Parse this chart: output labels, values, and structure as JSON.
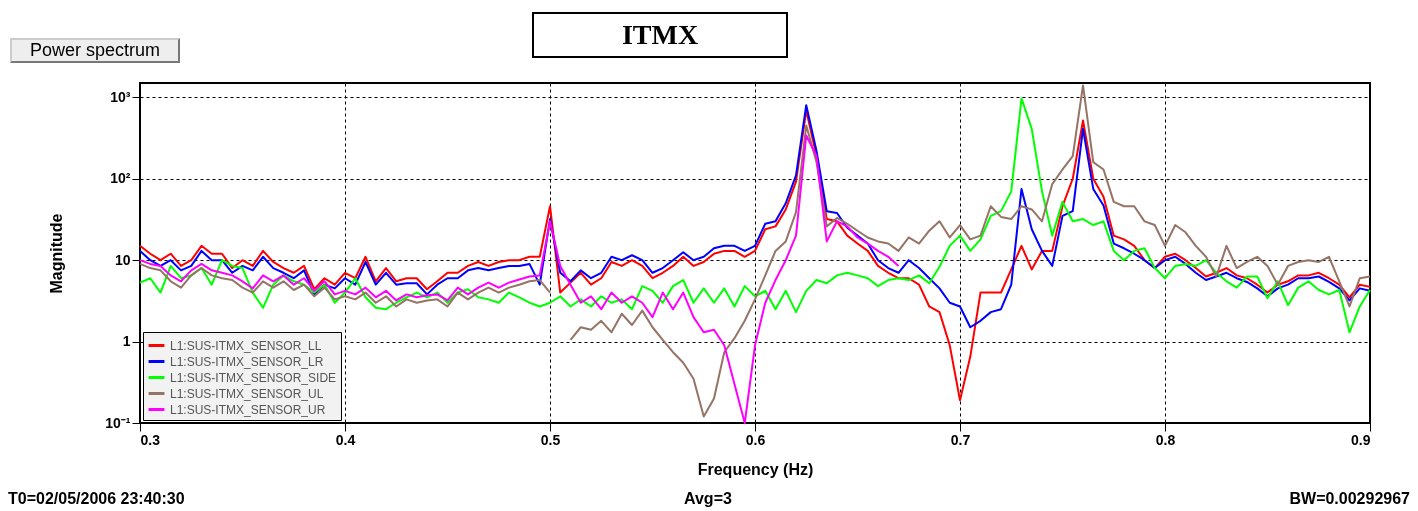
{
  "chart_data": {
    "type": "line",
    "title": "ITMX",
    "xlabel": "Frequency (Hz)",
    "ylabel": "Magnitude",
    "annotations": [
      "Power spectrum",
      "T0=02/05/2006 23:40:30",
      "Avg=3",
      "BW=0.00292967"
    ],
    "x": [
      0.3,
      0.305,
      0.31,
      0.315,
      0.32,
      0.325,
      0.33,
      0.335,
      0.34,
      0.345,
      0.35,
      0.355,
      0.36,
      0.365,
      0.37,
      0.375,
      0.38,
      0.385,
      0.39,
      0.395,
      0.4,
      0.405,
      0.41,
      0.415,
      0.42,
      0.425,
      0.43,
      0.435,
      0.44,
      0.445,
      0.45,
      0.455,
      0.46,
      0.465,
      0.47,
      0.475,
      0.48,
      0.485,
      0.49,
      0.495,
      0.5,
      0.505,
      0.51,
      0.515,
      0.52,
      0.525,
      0.53,
      0.535,
      0.54,
      0.545,
      0.55,
      0.555,
      0.56,
      0.565,
      0.57,
      0.575,
      0.58,
      0.585,
      0.59,
      0.595,
      0.6,
      0.605,
      0.61,
      0.615,
      0.62,
      0.625,
      0.63,
      0.635,
      0.64,
      0.645,
      0.65,
      0.655,
      0.66,
      0.665,
      0.67,
      0.675,
      0.68,
      0.685,
      0.69,
      0.695,
      0.7,
      0.705,
      0.71,
      0.715,
      0.72,
      0.725,
      0.73,
      0.735,
      0.74,
      0.745,
      0.75,
      0.755,
      0.76,
      0.765,
      0.77,
      0.775,
      0.78,
      0.785,
      0.79,
      0.795,
      0.8,
      0.805,
      0.81,
      0.815,
      0.82,
      0.825,
      0.83,
      0.835,
      0.84,
      0.845,
      0.85,
      0.855,
      0.86,
      0.865,
      0.87,
      0.875,
      0.88,
      0.885,
      0.89,
      0.895,
      0.9
    ],
    "series": [
      {
        "name": "L1:SUS-ITMX_SENSOR_LL",
        "color": "#ff0000",
        "values": [
          15,
          12,
          10,
          12,
          8.5,
          10,
          15,
          12,
          12,
          8,
          10,
          8.5,
          13,
          9.5,
          8,
          7,
          8.5,
          4.4,
          6,
          5,
          7,
          6,
          11,
          5.5,
          8,
          5.5,
          6,
          6,
          4.4,
          5.5,
          7,
          7,
          8.5,
          9.5,
          8.5,
          9.5,
          10,
          10,
          11,
          11,
          46,
          4,
          5.3,
          7,
          5,
          6,
          9.5,
          8.5,
          10,
          8.5,
          6,
          7,
          8.5,
          11,
          8.5,
          9.5,
          12,
          13,
          13,
          11,
          13,
          24,
          26,
          42,
          92,
          690,
          190,
          32,
          30,
          20,
          16,
          13,
          8.5,
          7,
          6,
          6,
          5,
          2.7,
          2.3,
          0.9,
          0.19,
          0.65,
          4,
          4,
          4,
          7.7,
          15,
          7.7,
          13,
          13,
          46,
          100,
          520,
          100,
          60,
          20,
          18,
          15,
          10,
          8,
          11,
          12,
          10,
          8,
          6.3,
          7,
          8,
          6.5,
          6,
          5,
          4,
          5,
          5.5,
          6.5,
          6.5,
          7,
          6,
          5,
          3.5,
          5,
          4.7
        ]
      },
      {
        "name": "L1:SUS-ITMX_SENSOR_LR",
        "color": "#0000ff",
        "values": [
          13,
          10,
          8.5,
          10,
          7.5,
          8.5,
          13,
          10,
          10,
          7,
          8.5,
          7.5,
          11,
          8,
          7,
          6,
          7.5,
          3.8,
          5,
          4.5,
          6,
          5,
          9.5,
          5,
          7,
          5,
          5.2,
          5.2,
          3.8,
          5,
          6,
          6,
          7.5,
          8,
          7.5,
          8,
          8.5,
          8.5,
          9,
          5,
          32,
          7,
          5.5,
          7.5,
          6,
          7,
          11,
          10,
          11.5,
          10,
          7,
          8,
          10,
          12.5,
          10,
          11,
          14,
          15,
          15,
          13,
          15,
          28,
          30,
          50,
          110,
          800,
          220,
          40,
          38,
          25,
          20,
          16,
          10,
          8,
          7,
          10,
          8,
          6,
          4.5,
          3,
          2.7,
          1.5,
          1.8,
          2.3,
          2.5,
          5,
          75,
          24,
          13,
          8.5,
          35,
          40,
          410,
          75,
          47,
          16,
          14,
          12,
          10,
          8,
          10,
          11,
          9,
          7,
          5.7,
          6.3,
          7,
          6,
          5.4,
          4.5,
          3.6,
          4.5,
          5,
          6,
          6,
          6.3,
          5.4,
          4.5,
          3.2,
          4.5,
          4.2
        ]
      },
      {
        "name": "L1:SUS-ITMX_SENSOR_SIDE",
        "color": "#00ff00",
        "values": [
          5.3,
          6,
          4,
          8.5,
          6,
          6.5,
          8,
          5,
          10,
          8.5,
          8,
          4,
          2.6,
          5,
          6.5,
          5.5,
          5,
          4,
          5,
          3,
          4,
          6,
          3.5,
          2.6,
          2.5,
          3,
          3.5,
          4,
          3.5,
          4,
          3,
          4,
          4.4,
          3.5,
          3.3,
          3,
          4,
          3.5,
          3,
          2.7,
          3,
          3.6,
          2.7,
          3.3,
          2.7,
          3.6,
          3,
          3.3,
          2.5,
          4.8,
          4.2,
          3,
          4.8,
          5.7,
          3,
          4.5,
          3,
          4.5,
          2.7,
          4.8,
          3.6,
          4.2,
          2.5,
          4.2,
          2.3,
          4.2,
          5.7,
          5.2,
          6.5,
          7,
          6.5,
          6,
          4.8,
          5.7,
          6,
          5.7,
          6.5,
          5.2,
          8.3,
          15,
          20,
          13,
          18,
          35,
          40,
          70,
          970,
          410,
          70,
          20,
          52,
          30,
          32,
          27,
          30,
          13,
          10,
          13,
          14,
          8,
          6,
          8.5,
          9,
          8.5,
          10,
          7,
          5.5,
          4.6,
          6.3,
          6.3,
          3.4,
          5.5,
          2.8,
          4.6,
          5.5,
          4.3,
          3.8,
          4.3,
          1.3,
          2.7,
          4.3
        ]
      },
      {
        "name": "L1:SUS-ITMX_SENSOR_UL",
        "color": "#957465",
        "values": [
          9,
          8,
          7.5,
          5.5,
          4.6,
          6.5,
          8,
          6.5,
          6,
          5.7,
          4.6,
          4,
          5.5,
          4.6,
          5.5,
          4.3,
          5,
          3.6,
          4.6,
          3.3,
          3.6,
          3.3,
          4,
          3,
          3.6,
          2.7,
          3.3,
          3,
          3.2,
          3.3,
          2.7,
          4,
          3.3,
          4,
          4.6,
          4,
          4.6,
          5,
          5.5,
          5.7,
          4,
          null,
          1.05,
          1.5,
          1.4,
          1.8,
          1.3,
          2.2,
          1.6,
          2.4,
          1.5,
          1.05,
          0.74,
          0.55,
          0.35,
          0.12,
          0.2,
          0.74,
          1.1,
          1.8,
          3.3,
          6.5,
          13,
          17,
          39,
          450,
          160,
          26,
          33,
          28,
          23,
          19,
          17,
          16,
          13,
          19,
          16,
          23,
          30,
          19,
          27,
          18,
          20,
          46,
          34,
          32,
          46,
          42,
          30,
          86,
          130,
          190,
          1400,
          160,
          130,
          52,
          46,
          46,
          30,
          27,
          15,
          27,
          22,
          15,
          11,
          6.3,
          15,
          8,
          9.5,
          11,
          8.5,
          5,
          8.5,
          9.5,
          10,
          9.5,
          11,
          5.5,
          2.7,
          6,
          6.3
        ]
      },
      {
        "name": "L1:SUS-ITMX_SENSOR_UR",
        "color": "#ff00ff",
        "values": [
          10,
          9,
          8.5,
          6.5,
          5.5,
          7.5,
          9,
          7.5,
          7,
          6.5,
          5.5,
          4.5,
          6.5,
          5.5,
          6.5,
          5,
          6,
          4.2,
          5.5,
          3.8,
          4.2,
          3.8,
          4.6,
          3.5,
          4.2,
          3.2,
          3.8,
          3.5,
          3.7,
          3.8,
          3.2,
          4.6,
          3.8,
          4.6,
          5.3,
          4.6,
          5.3,
          5.8,
          6.3,
          6.5,
          30,
          8.5,
          5,
          3,
          3.6,
          2.5,
          4,
          3,
          3.6,
          3,
          2,
          4,
          2.5,
          4,
          2,
          1.3,
          1.4,
          0.9,
          0.3,
          0.1,
          0.9,
          3,
          5.7,
          10,
          20,
          340,
          190,
          17,
          30,
          26,
          19,
          16,
          13,
          11,
          8.5,
          null,
          null,
          null,
          null,
          null,
          null,
          null,
          null,
          null,
          null,
          null,
          null,
          null,
          null,
          null,
          null,
          null,
          null,
          null,
          null,
          null,
          null,
          null,
          null,
          null,
          null,
          null,
          null,
          null,
          null,
          null,
          null,
          null,
          null,
          null,
          null,
          null,
          null,
          null,
          null,
          null,
          null,
          null,
          null,
          null,
          null
        ]
      }
    ],
    "xlim": [
      0.3,
      0.9
    ],
    "xticks": [
      0.3,
      0.4,
      0.5,
      0.6,
      0.7,
      0.8,
      0.9
    ],
    "ylim": [
      0.1,
      1500
    ],
    "yticks": [
      {
        "value": 0.1,
        "label": "10⁻¹"
      },
      1,
      10,
      {
        "value": 100,
        "label": "10²"
      },
      {
        "value": 1000,
        "label": "10³"
      }
    ],
    "log": true,
    "grid": true,
    "legend": "bottom left",
    "line_style": "solid"
  }
}
